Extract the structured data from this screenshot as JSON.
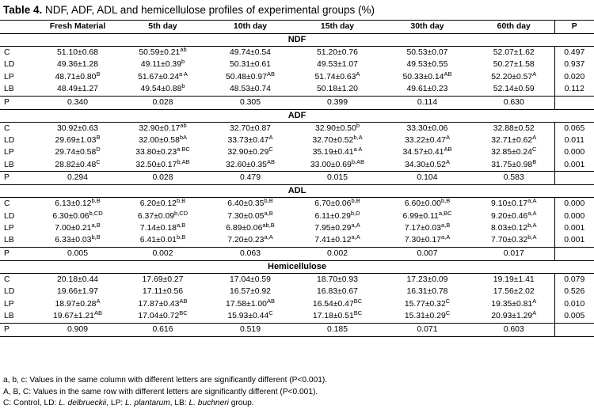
{
  "title": {
    "label": "Table 4.",
    "text": " NDF, ADF, ADL and hemicellulose profiles of experimental groups (%)"
  },
  "columns": [
    "",
    "Fresh Material",
    "5th day",
    "10th day",
    "15th day",
    "30th day",
    "60th day",
    "P"
  ],
  "sections": [
    {
      "name": "NDF",
      "rows": [
        {
          "group": "C",
          "cells": [
            [
              "51.10±0.68",
              ""
            ],
            [
              "50.59±0.21",
              "ab"
            ],
            [
              "49.74±0.54",
              ""
            ],
            [
              "51.20±0.76",
              ""
            ],
            [
              "50.53±0.07",
              ""
            ],
            [
              "52.07±1.62",
              ""
            ]
          ],
          "p": "0.497"
        },
        {
          "group": "LD",
          "cells": [
            [
              "49.36±1.28",
              ""
            ],
            [
              "49.11±0.39",
              "b"
            ],
            [
              "50.31±0.61",
              ""
            ],
            [
              "49.53±1.07",
              ""
            ],
            [
              "49.53±0.55",
              ""
            ],
            [
              "50.27±1.58",
              ""
            ]
          ],
          "p": "0.937"
        },
        {
          "group": "LP",
          "cells": [
            [
              "48.71±0.80",
              "B"
            ],
            [
              "51.67±0.24",
              "a A"
            ],
            [
              "50.48±0.97",
              "AB"
            ],
            [
              "51.74±0.63",
              "A"
            ],
            [
              "50.33±0.14",
              "AB"
            ],
            [
              "52.20±0.57",
              "A"
            ]
          ],
          "p": "0.020"
        },
        {
          "group": "LB",
          "cells": [
            [
              "48.49±1.27",
              ""
            ],
            [
              "49.54±0.88",
              "b"
            ],
            [
              "48.53±0.74",
              ""
            ],
            [
              "50.18±1.20",
              ""
            ],
            [
              "49.61±0.23",
              ""
            ],
            [
              "52.14±0.59",
              ""
            ]
          ],
          "p": "0.112"
        }
      ],
      "p_row": [
        "0.340",
        "0.028",
        "0.305",
        "0.399",
        "0.114",
        "0.630"
      ]
    },
    {
      "name": "ADF",
      "rows": [
        {
          "group": "C",
          "cells": [
            [
              "30.92±0.63",
              ""
            ],
            [
              "32.90±0.17",
              "ab"
            ],
            [
              "32.70±0.87",
              ""
            ],
            [
              "32.90±0.50",
              "b"
            ],
            [
              "33.30±0.06",
              ""
            ],
            [
              "32.88±0.52",
              ""
            ]
          ],
          "p": "0.065"
        },
        {
          "group": "LD",
          "cells": [
            [
              "29.69±1.03",
              "B"
            ],
            [
              "32.00±0.58",
              "bA"
            ],
            [
              "33.73±0.47",
              "A"
            ],
            [
              "32.70±0.52",
              "b,A"
            ],
            [
              "33.22±0.47",
              "A"
            ],
            [
              "32.71±0.62",
              "A"
            ]
          ],
          "p": "0.011"
        },
        {
          "group": "LP",
          "cells": [
            [
              "29.74±0.58",
              "D"
            ],
            [
              "33.80±0.23",
              "a BC"
            ],
            [
              "32.90±0.29",
              "C"
            ],
            [
              "35.19±0.41",
              "a A"
            ],
            [
              "34.57±0.41",
              "AB"
            ],
            [
              "32.85±0.24",
              "C"
            ]
          ],
          "p": "0.000"
        },
        {
          "group": "LB",
          "cells": [
            [
              "28.82±0.48",
              "C"
            ],
            [
              "32.50±0.17",
              "b,AB"
            ],
            [
              "32.60±0.35",
              "AB"
            ],
            [
              "33.00±0.69",
              "b,AB"
            ],
            [
              "34.30±0.52",
              "A"
            ],
            [
              "31.75±0.98",
              "B"
            ]
          ],
          "p": "0.001"
        }
      ],
      "p_row": [
        "0.294",
        "0.028",
        "0.479",
        "0.015",
        "0.104",
        "0.583"
      ]
    },
    {
      "name": "ADL",
      "rows": [
        {
          "group": "C",
          "cells": [
            [
              "6.13±0.12",
              "b,B"
            ],
            [
              "6.20±0.12",
              "b,B"
            ],
            [
              "6.40±0.35",
              "b,B"
            ],
            [
              "6.70±0.06",
              "b,B"
            ],
            [
              "6.60±0.00",
              "b,B"
            ],
            [
              "9.10±0.17",
              "a,A"
            ]
          ],
          "p": "0.000"
        },
        {
          "group": "LD",
          "cells": [
            [
              "6.30±0.06",
              "b,CD"
            ],
            [
              "6.37±0.09",
              "b,CD"
            ],
            [
              "7.30±0.05",
              "a,B"
            ],
            [
              "6.11±0.29",
              "b,D"
            ],
            [
              "6.99±0.11",
              "a,BC"
            ],
            [
              "9.20±0.46",
              "a,A"
            ]
          ],
          "p": "0.000"
        },
        {
          "group": "LP",
          "cells": [
            [
              "7.00±0.21",
              "a,B"
            ],
            [
              "7.14±0.18",
              "a,B"
            ],
            [
              "6.89±0.06",
              "ab,B"
            ],
            [
              "7.95±0.29",
              "a,A"
            ],
            [
              "7.17±0.03",
              "a,B"
            ],
            [
              "8.03±0.12",
              "b,A"
            ]
          ],
          "p": "0.001"
        },
        {
          "group": "LB",
          "cells": [
            [
              "6.33±0.03",
              "b,B"
            ],
            [
              "6.41±0.01",
              "b,B"
            ],
            [
              "7.20±0.23",
              "a,A"
            ],
            [
              "7.41±0.12",
              "a,A"
            ],
            [
              "7.30±0.17",
              "a,A"
            ],
            [
              "7.70±0.32",
              "b,A"
            ]
          ],
          "p": "0.001"
        }
      ],
      "p_row": [
        "0.005",
        "0.002",
        "0.063",
        "0.002",
        "0.007",
        "0.017"
      ]
    },
    {
      "name": "Hemicellulose",
      "rows": [
        {
          "group": "C",
          "cells": [
            [
              "20.18±0.44",
              ""
            ],
            [
              "17.69±0.27",
              ""
            ],
            [
              "17.04±0.59",
              ""
            ],
            [
              "18.70±0.93",
              ""
            ],
            [
              "17.23±0.09",
              ""
            ],
            [
              "19.19±1.41",
              ""
            ]
          ],
          "p": "0.079"
        },
        {
          "group": "LD",
          "cells": [
            [
              "19.66±1.97",
              ""
            ],
            [
              "17.11±0.56",
              ""
            ],
            [
              "16.57±0.92",
              ""
            ],
            [
              "16.83±0.67",
              ""
            ],
            [
              "16.31±0.78",
              ""
            ],
            [
              "17.56±2.02",
              ""
            ]
          ],
          "p": "0.526"
        },
        {
          "group": "LP",
          "cells": [
            [
              "18.97±0.28",
              "A"
            ],
            [
              "17.87±0.43",
              "AB"
            ],
            [
              "17.58±1.00",
              "AB"
            ],
            [
              "16.54±0.47",
              "BC"
            ],
            [
              "15.77±0.32",
              "C"
            ],
            [
              "19.35±0.81",
              "A"
            ]
          ],
          "p": "0.010"
        },
        {
          "group": "LB",
          "cells": [
            [
              "19.67±1.21",
              "AB"
            ],
            [
              "17.04±0.72",
              "BC"
            ],
            [
              "15.93±0.44",
              "C"
            ],
            [
              "17.18±0.51",
              "BC"
            ],
            [
              "15.31±0.29",
              "C"
            ],
            [
              "20.93±1.29",
              "A"
            ]
          ],
          "p": "0.005"
        }
      ],
      "p_row": [
        "0.909",
        "0.616",
        "0.519",
        "0.185",
        "0.071",
        "0.603"
      ]
    }
  ],
  "p_label": "P",
  "footnotes": {
    "line1": "a, b, c: Values in the same column with different letters are significantly different (P<0.001).",
    "line2": "A, B, C: Values in the same row with different letters are significantly different (P<0.001).",
    "line3_prefix": "C: Control, LD: ",
    "ld_species": "L. delbrueckii",
    "lp_prefix": ", LP: ",
    "lp_species": "L. plantarum",
    "lb_prefix": ", LB: ",
    "lb_species": "L. buchneri",
    "line3_suffix": " group."
  }
}
